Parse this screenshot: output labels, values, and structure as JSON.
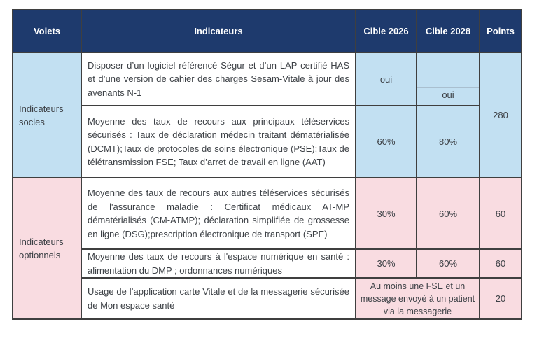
{
  "table": {
    "headers": {
      "volets": "Volets",
      "indicateurs": "Indicateurs",
      "cible_2026": "Cible 2026",
      "cible_2028": "Cible 2028",
      "points": "Points"
    },
    "groups": {
      "socles": {
        "label": "Indicateurs socles",
        "points": "280"
      },
      "optionnels": {
        "label": "Indicateurs optionnels"
      }
    },
    "rows": [
      {
        "indicator": "Disposer d’un logiciel référencé Ségur et d’un LAP certifié HAS et d’une version de cahier des charges Sesam-Vitale à jour des avenants N-1",
        "cible_2026": "oui",
        "cible_2028": "oui"
      },
      {
        "indicator": "Moyenne des taux de recours aux principaux téléservices sécurisés : Taux de déclaration médecin traitant dématérialisée (DCMT);Taux de protocoles de soins électronique (PSE);Taux de télétransmission FSE; Taux d’arret de travail en ligne (AAT)",
        "cible_2026": "60%",
        "cible_2028": "80%"
      },
      {
        "indicator": "Moyenne des taux de recours aux autres téléservices sécurisés de l'assurance maladie : Certificat médicaux AT-MP dématérialisés (CM-ATMP); déclaration simplifiée de grossesse en ligne (DSG);prescription électronique de transport (SPE)",
        "cible_2026": "30%",
        "cible_2028": "60%",
        "points": "60"
      },
      {
        "indicator": "Moyenne des taux de recours à l'espace numérique en santé : alimentation du DMP ; ordonnances numériques",
        "cible_2026": "30%",
        "cible_2028": "60%",
        "points": "60"
      },
      {
        "indicator": "Usage de l’application carte Vitale et de la messagerie sécurisée de Mon espace santé",
        "cible_merged": "Au moins une FSE et un message envoyé à un patient via la messagerie",
        "points": "20"
      }
    ],
    "colors": {
      "header_bg": "#1e3a6d",
      "header_text": "#ffffff",
      "socles_bg": "#c2e0f2",
      "optionnels_bg": "#f9dce1",
      "indicator_bg": "#ffffff",
      "border": "#3f3f3f",
      "text": "#3d4146"
    }
  }
}
